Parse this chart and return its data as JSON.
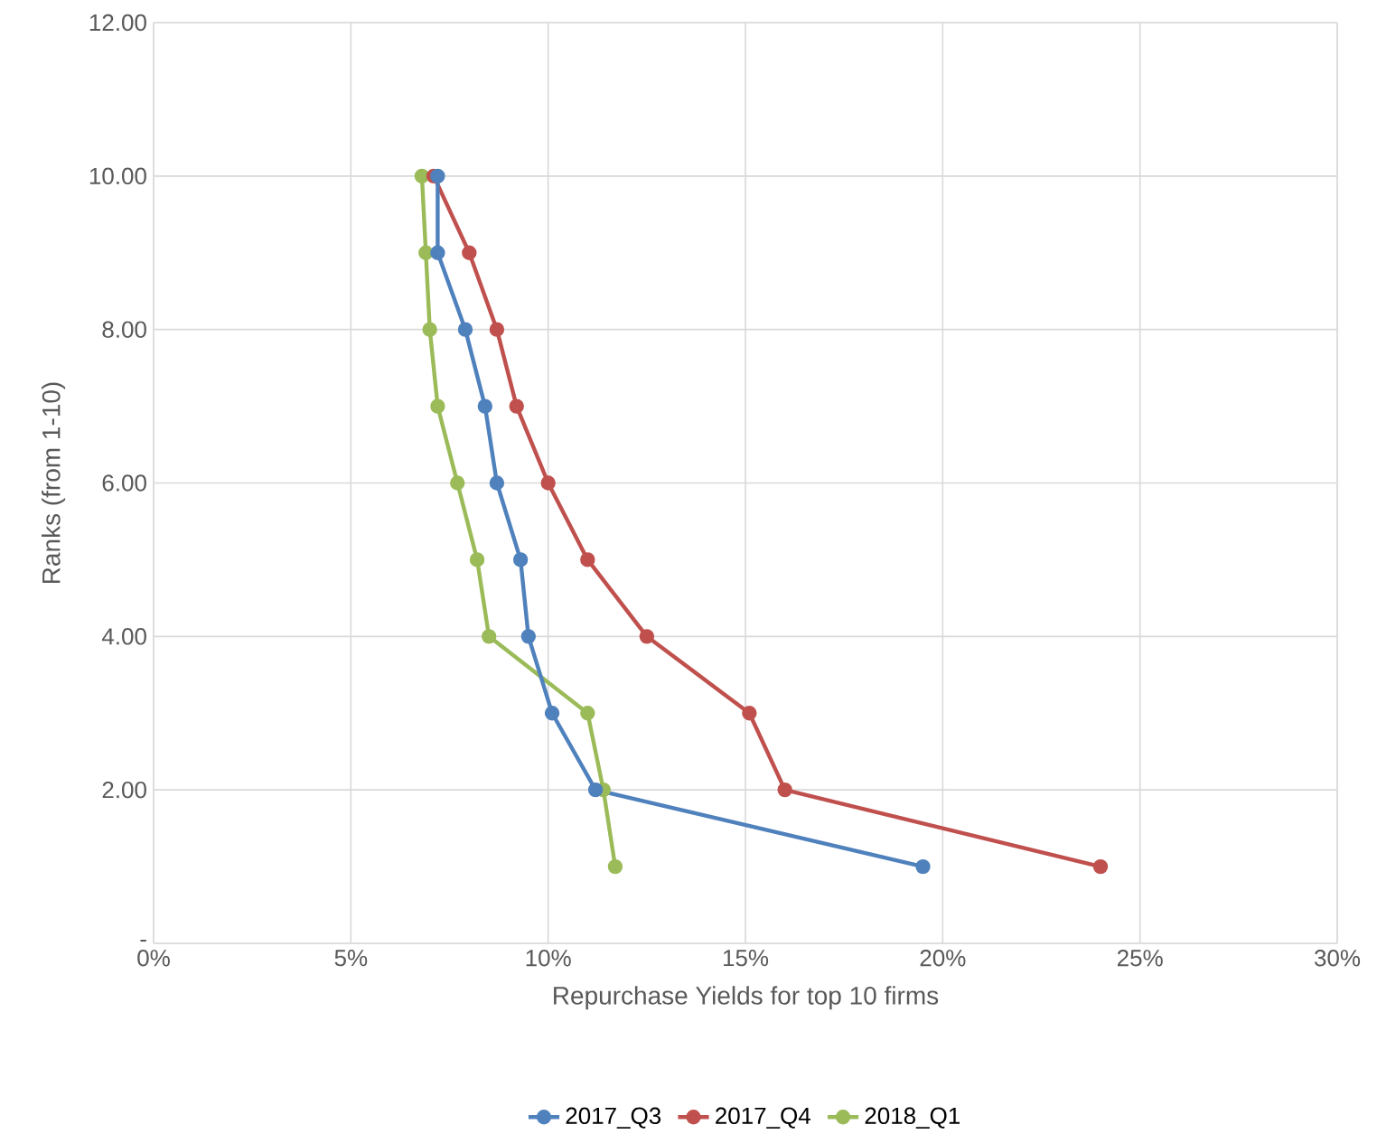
{
  "chart_data": {
    "type": "line",
    "xlabel": "Repurchase Yields for top 10 firms",
    "ylabel": "Ranks (from 1-10)",
    "xlim": [
      0,
      30
    ],
    "ylim": [
      0,
      12
    ],
    "xticks": [
      {
        "value": 0,
        "label": "0%"
      },
      {
        "value": 5,
        "label": "5%"
      },
      {
        "value": 10,
        "label": "10%"
      },
      {
        "value": 15,
        "label": "15%"
      },
      {
        "value": 20,
        "label": "20%"
      },
      {
        "value": 25,
        "label": "25%"
      },
      {
        "value": 30,
        "label": "30%"
      }
    ],
    "yticks": [
      {
        "value": 0,
        "label": "-"
      },
      {
        "value": 2,
        "label": "2.00"
      },
      {
        "value": 4,
        "label": "4.00"
      },
      {
        "value": 6,
        "label": "6.00"
      },
      {
        "value": 8,
        "label": "8.00"
      },
      {
        "value": 10,
        "label": "10.00"
      },
      {
        "value": 12,
        "label": "12.00"
      }
    ],
    "grid": true,
    "legend": "bottom",
    "marker": "circle",
    "line_style": "solid",
    "series": [
      {
        "name": "2017_Q3",
        "color": "#4f81bd",
        "x": [
          7.2,
          7.2,
          7.9,
          8.4,
          8.7,
          9.3,
          9.5,
          10.1,
          11.2,
          19.5
        ],
        "values": [
          10,
          9,
          8,
          7,
          6,
          5,
          4,
          3,
          2,
          1
        ]
      },
      {
        "name": "2017_Q4",
        "color": "#c0504d",
        "x": [
          7.1,
          8.0,
          8.7,
          9.2,
          10.0,
          11.0,
          12.5,
          15.1,
          16.0,
          24.0
        ],
        "values": [
          10,
          9,
          8,
          7,
          6,
          5,
          4,
          3,
          2,
          1
        ]
      },
      {
        "name": "2018_Q1",
        "color": "#9bbb59",
        "x": [
          6.8,
          6.9,
          7.0,
          7.2,
          7.7,
          8.2,
          8.5,
          11.0,
          11.4,
          11.7
        ],
        "values": [
          10,
          9,
          8,
          7,
          6,
          5,
          4,
          3,
          2,
          1
        ]
      }
    ]
  }
}
